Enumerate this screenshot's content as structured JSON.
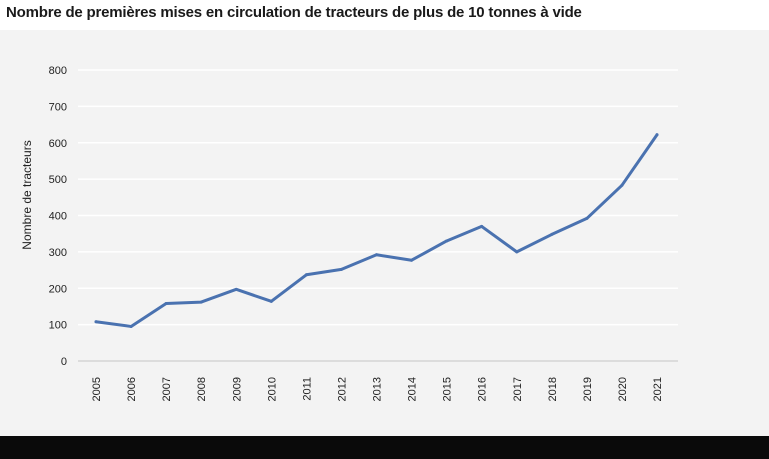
{
  "title": "Nombre de premières mises en circulation de tracteurs de plus de 10 tonnes à vide",
  "colors": {
    "line": "#4a72b0",
    "grid": "#ffffff",
    "panel": "#f3f3f3",
    "footer": "#0a0a0a"
  },
  "chart_data": {
    "type": "line",
    "title": "Nombre de premières mises en circulation de tracteurs de plus de 10 tonnes à vide",
    "xlabel": "",
    "ylabel": "Nombre de tracteurs",
    "ylim": [
      0,
      800
    ],
    "yticks": [
      "0",
      "100",
      "200",
      "300",
      "400",
      "500",
      "600",
      "700",
      "800"
    ],
    "categories": [
      "2005",
      "2006",
      "2007",
      "2008",
      "2009",
      "2010",
      "2011",
      "2012",
      "2013",
      "2014",
      "2015",
      "2016",
      "2017",
      "2018",
      "2019",
      "2020",
      "2021"
    ],
    "series": [
      {
        "name": "Tracteurs",
        "values": [
          108,
          95,
          158,
          162,
          197,
          164,
          237,
          252,
          292,
          277,
          330,
          370,
          300,
          348,
          392,
          483,
          622
        ]
      }
    ],
    "grid": true,
    "legend": "none"
  }
}
